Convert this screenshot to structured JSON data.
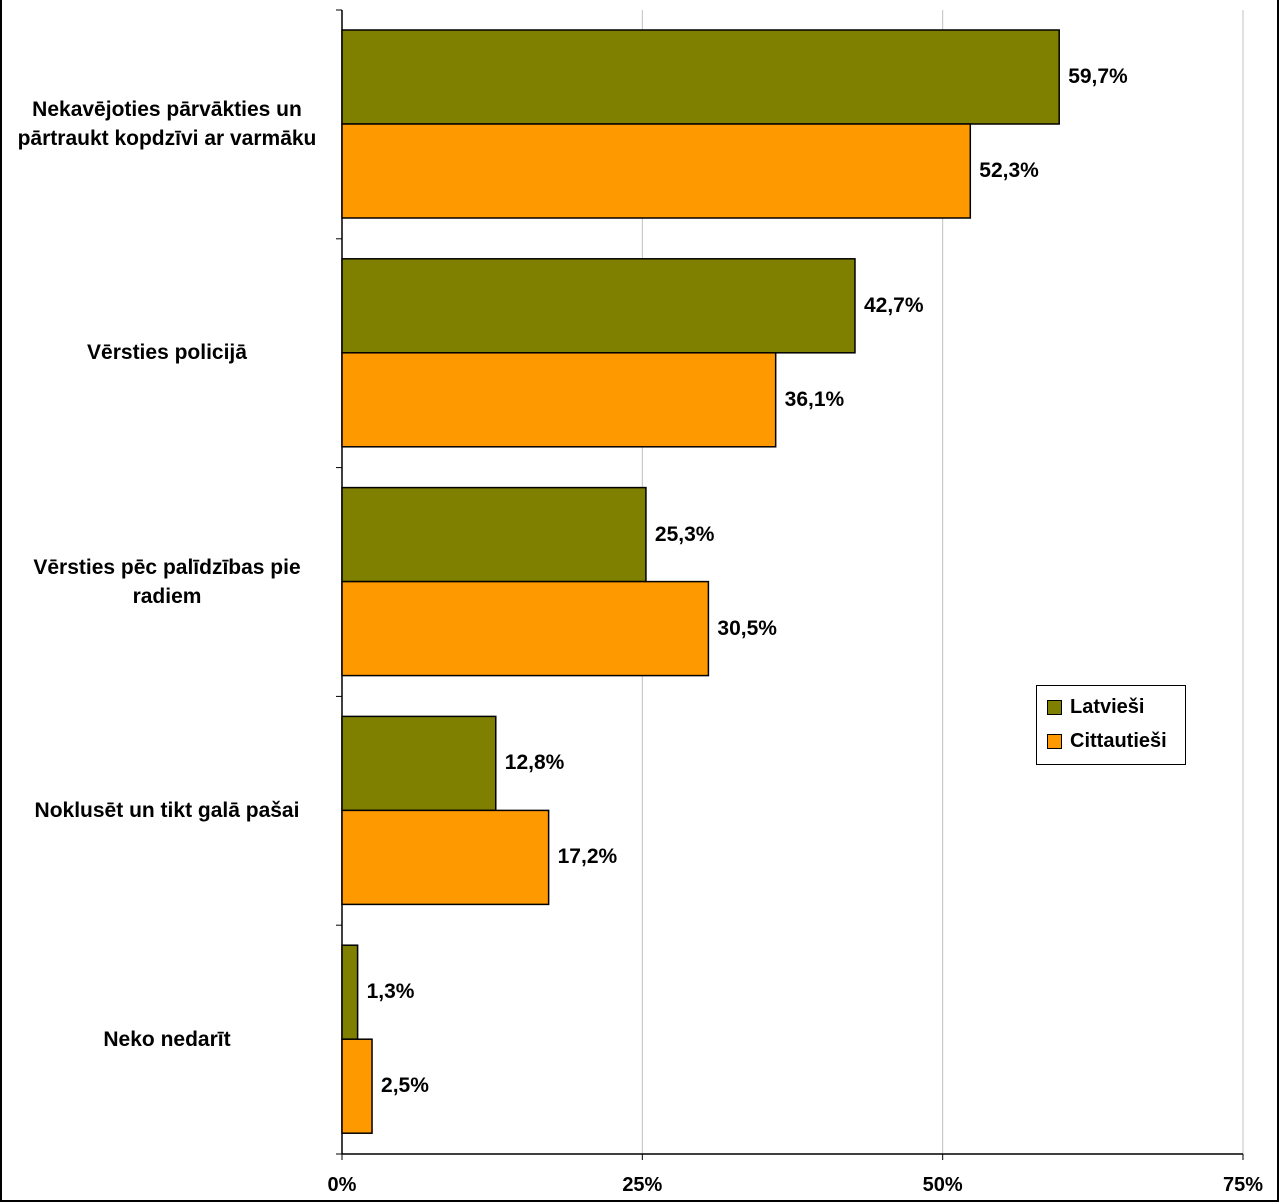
{
  "chart_data": {
    "type": "bar",
    "orientation": "horizontal",
    "title": "",
    "xlabel": "",
    "ylabel": "",
    "categories": [
      "Nekavējoties pārvākties un pārtraukt kopdzīvi ar varmāku",
      "Vērsties policijā",
      "Vērsties pēc palīdzības pie radiem",
      "Noklusēt un tikt galā pašai",
      "Neko nedarīt"
    ],
    "series": [
      {
        "name": "Latvieši",
        "color": "#808000",
        "values": [
          59.7,
          42.7,
          25.3,
          12.8,
          1.3
        ],
        "labels": [
          "59,7%",
          "42,7%",
          "25,3%",
          "12,8%",
          "1,3%"
        ]
      },
      {
        "name": "Cittautieši",
        "color": "#FF9900",
        "values": [
          52.3,
          36.1,
          30.5,
          17.2,
          2.5
        ],
        "labels": [
          "52,3%",
          "36,1%",
          "30,5%",
          "17,2%",
          "2,5%"
        ]
      }
    ],
    "xlim": [
      0,
      75
    ],
    "xticks": [
      0,
      25,
      50,
      75
    ],
    "xtick_labels": [
      "0%",
      "25%",
      "50%",
      "75%"
    ],
    "grid": true,
    "legend_position": "right"
  }
}
